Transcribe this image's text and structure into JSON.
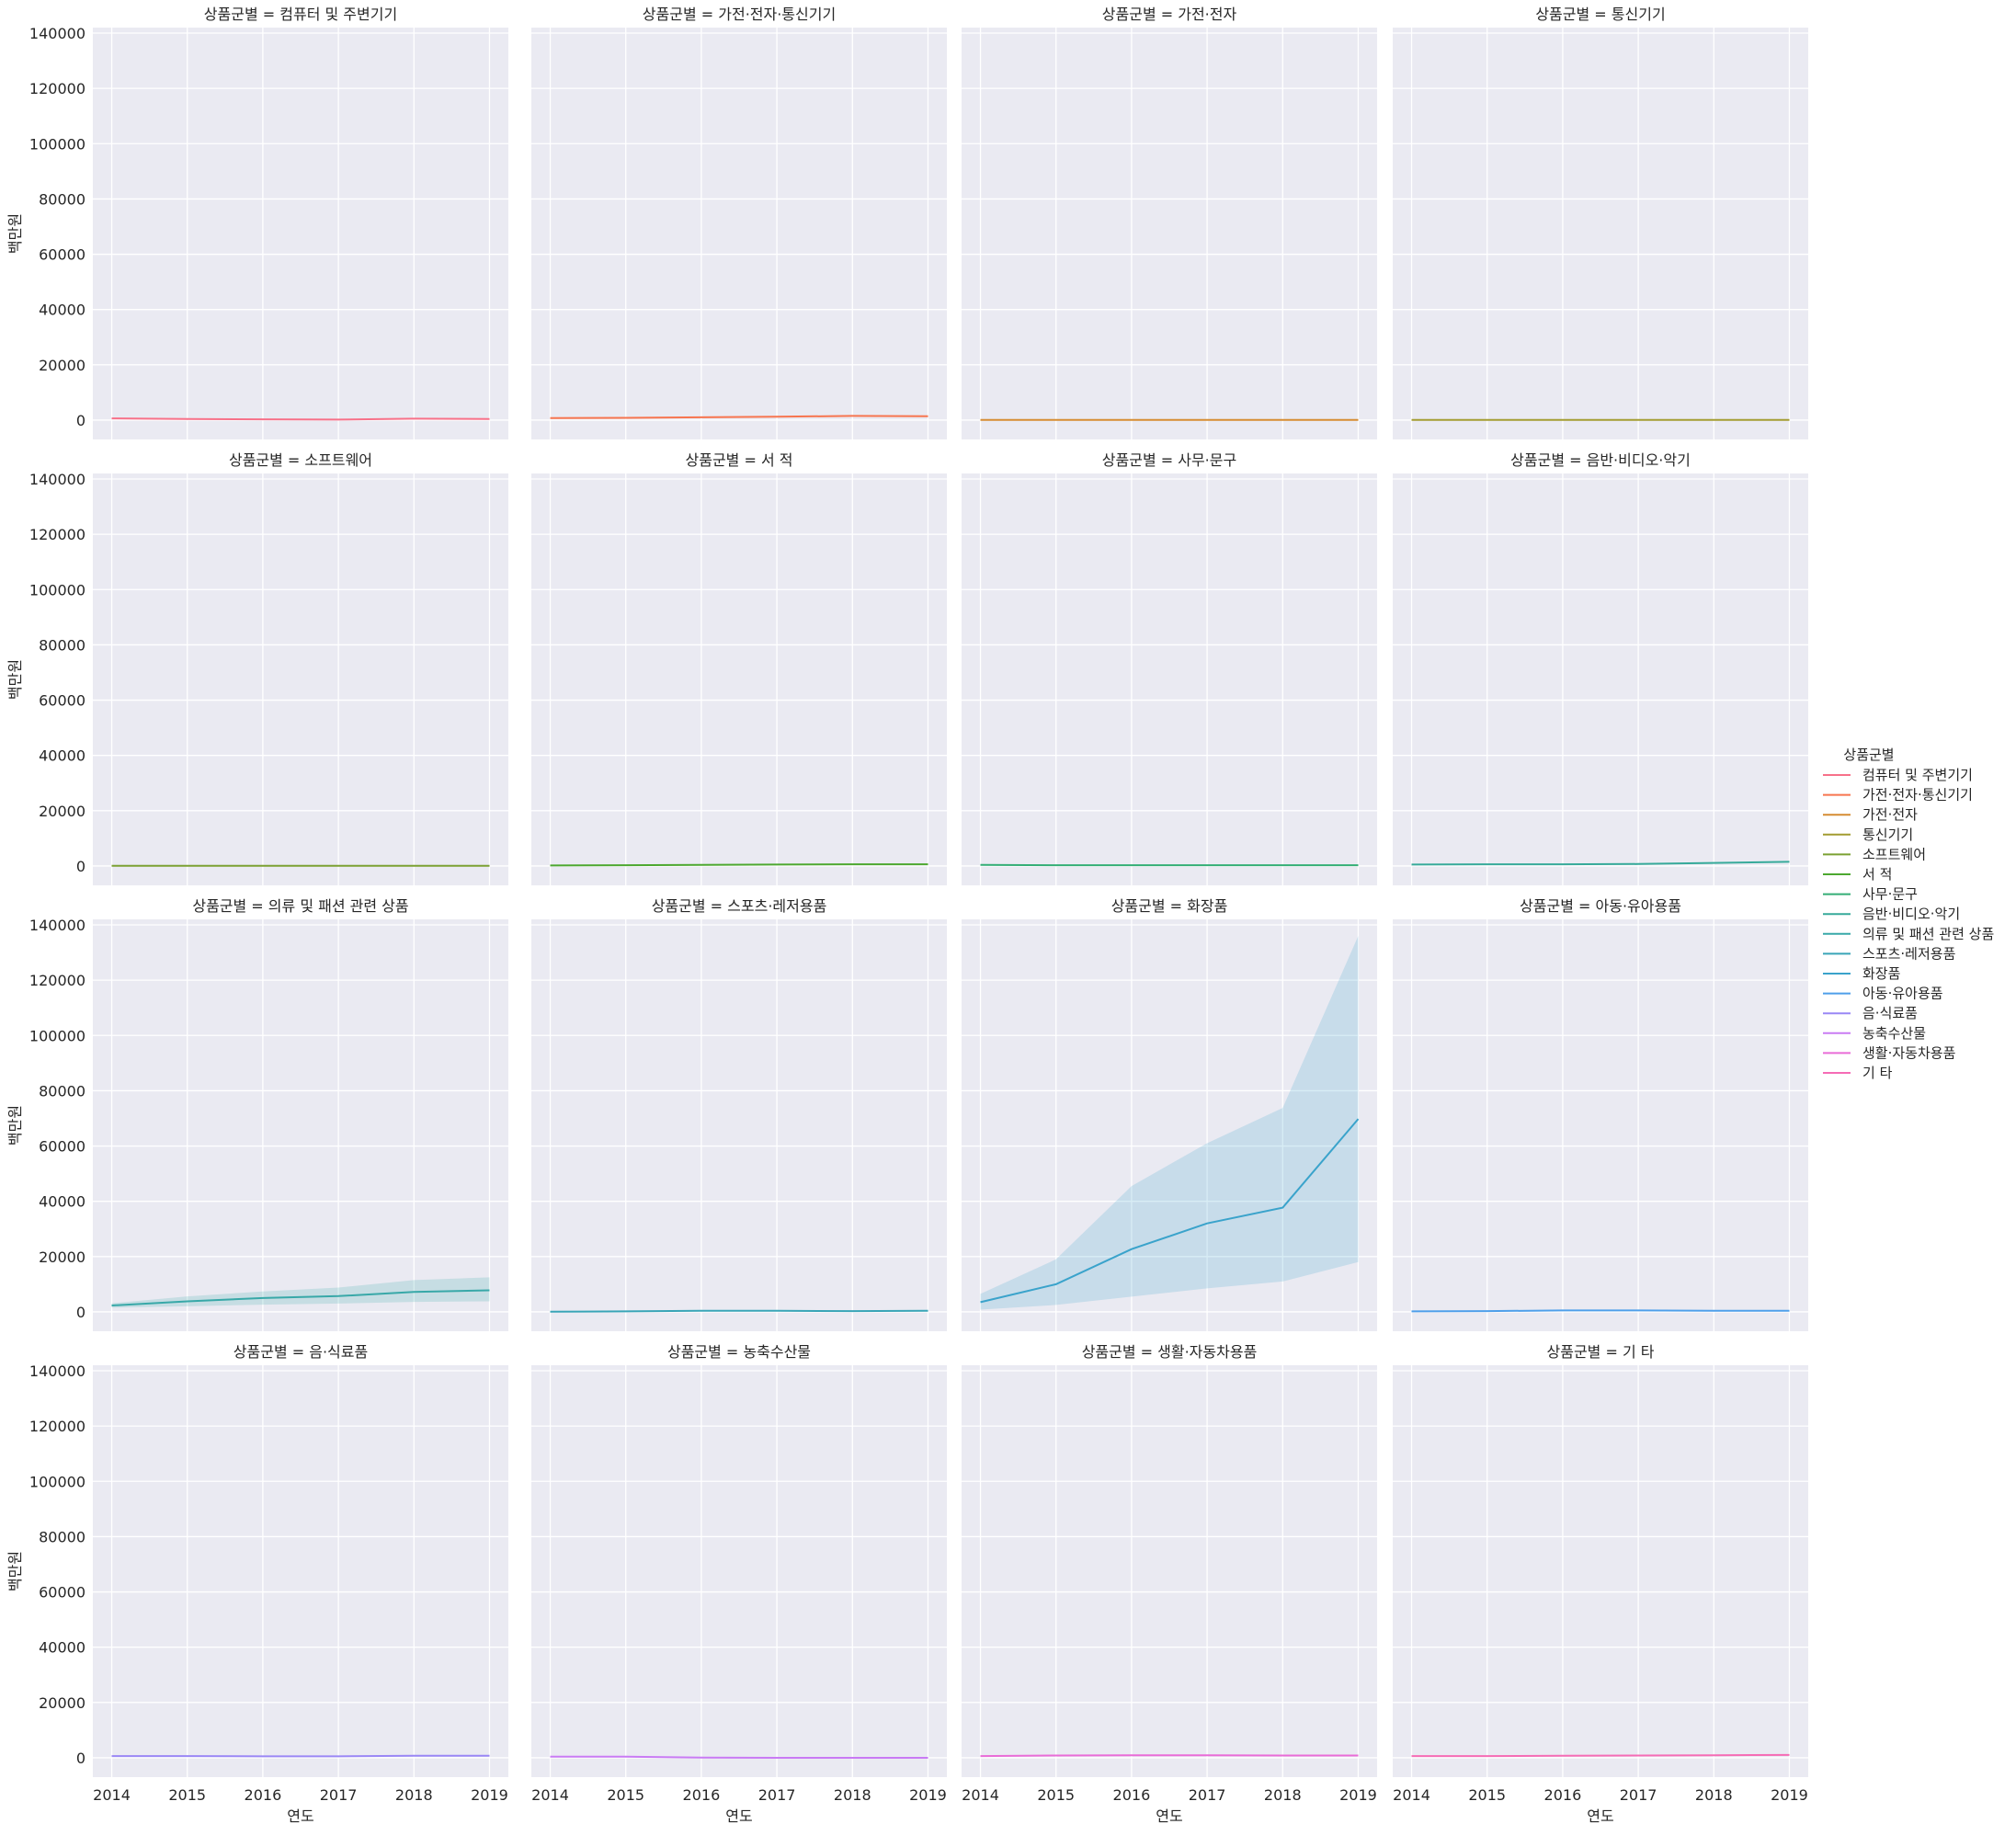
{
  "chart_data": {
    "type": "line",
    "facet_label": "상품군별",
    "facet_separator": " = ",
    "xlabel": "연도",
    "ylabel": "백만원",
    "x": [
      2014,
      2015,
      2016,
      2017,
      2018,
      2019
    ],
    "xlim": [
      2013.75,
      2019.25
    ],
    "ylim": [
      -7000,
      142000
    ],
    "yticks": [
      0,
      20000,
      40000,
      60000,
      80000,
      100000,
      120000,
      140000
    ],
    "grid": true,
    "legend": {
      "title": "상품군별",
      "placement": "center-right"
    },
    "series": [
      {
        "name": "컴퓨터 및 주변기기",
        "color": "#f77189",
        "values": [
          600,
          400,
          300,
          200,
          500,
          400
        ]
      },
      {
        "name": "가전·전자·통신기기",
        "color": "#f7754f",
        "values": [
          700,
          800,
          1000,
          1200,
          1500,
          1400
        ],
        "band": [
          [
            600,
            800
          ],
          [
            700,
            900
          ],
          [
            900,
            1100
          ],
          [
            1100,
            1300
          ],
          [
            1300,
            1700
          ],
          [
            1200,
            1600
          ]
        ]
      },
      {
        "name": "가전·전자",
        "color": "#d58c32",
        "values": [
          100,
          100,
          100,
          100,
          100,
          100
        ]
      },
      {
        "name": "통신기기",
        "color": "#a39c31",
        "values": [
          100,
          100,
          100,
          100,
          100,
          100
        ]
      },
      {
        "name": "소프트웨어",
        "color": "#7ba132",
        "values": [
          100,
          100,
          100,
          100,
          100,
          100
        ]
      },
      {
        "name": "서 적",
        "color": "#4da830",
        "values": [
          200,
          300,
          400,
          500,
          600,
          600
        ]
      },
      {
        "name": "사무·문구",
        "color": "#34ae76",
        "values": [
          400,
          300,
          300,
          300,
          300,
          300
        ]
      },
      {
        "name": "음반·비디오·악기",
        "color": "#37aa9a",
        "values": [
          500,
          600,
          600,
          700,
          1100,
          1500
        ]
      },
      {
        "name": "의류 및 패션 관련 상품",
        "color": "#38a8a8",
        "values": [
          2300,
          3800,
          5000,
          5700,
          7200,
          7800
        ],
        "band": [
          [
            1500,
            3100
          ],
          [
            2000,
            5600
          ],
          [
            2600,
            7400
          ],
          [
            3000,
            8800
          ],
          [
            3600,
            11500
          ],
          [
            3800,
            12500
          ]
        ]
      },
      {
        "name": "스포츠·레저용품",
        "color": "#39a5b7",
        "values": [
          100,
          200,
          400,
          400,
          300,
          400
        ]
      },
      {
        "name": "화장품",
        "color": "#3aa3cb",
        "values": [
          3500,
          10000,
          22700,
          32000,
          37700,
          69800
        ],
        "band": [
          [
            800,
            6500
          ],
          [
            2500,
            19000
          ],
          [
            5500,
            45500
          ],
          [
            8500,
            61000
          ],
          [
            11000,
            73800
          ],
          [
            18000,
            136000
          ]
        ]
      },
      {
        "name": "아동·유아용품",
        "color": "#4e9fea",
        "values": [
          200,
          300,
          500,
          500,
          400,
          400
        ]
      },
      {
        "name": "음·식료품",
        "color": "#9a87f5",
        "values": [
          600,
          600,
          500,
          500,
          700,
          700
        ]
      },
      {
        "name": "농축수산물",
        "color": "#c97bf4",
        "values": [
          400,
          400,
          100,
          0,
          0,
          0
        ]
      },
      {
        "name": "생활·자동차용품",
        "color": "#e96cd7",
        "values": [
          600,
          800,
          900,
          900,
          800,
          800
        ]
      },
      {
        "name": "기 타",
        "color": "#f56cb5",
        "values": [
          600,
          600,
          700,
          800,
          900,
          1000
        ]
      }
    ]
  }
}
